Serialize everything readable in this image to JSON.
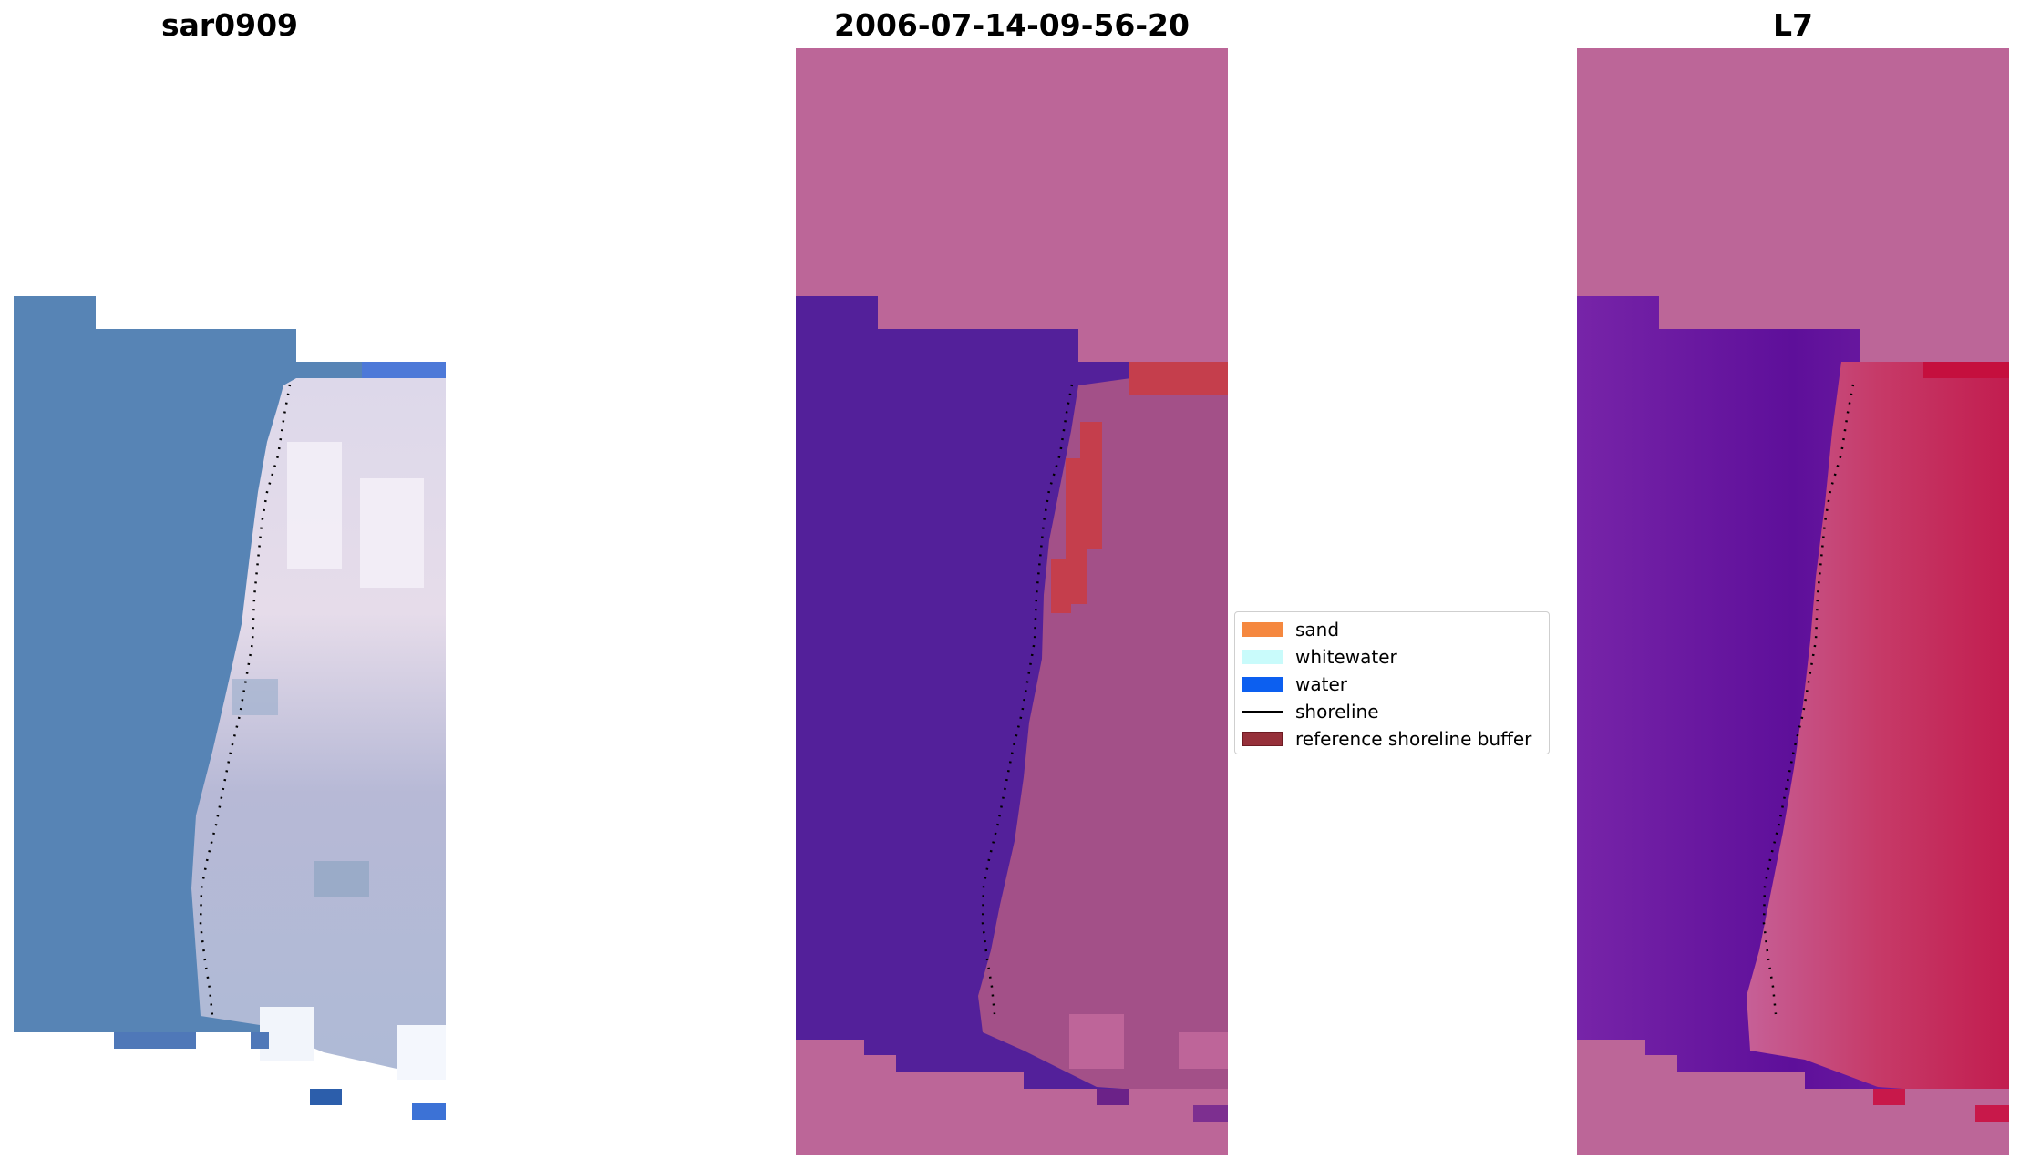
{
  "panels": {
    "left": {
      "title": "sar0909"
    },
    "middle": {
      "title": "2006-07-14-09-56-20"
    },
    "right": {
      "title": "L7"
    }
  },
  "legend": {
    "items": [
      {
        "label": "sand",
        "color": "#f5883f",
        "kind": "patch"
      },
      {
        "label": "whitewater",
        "color": "#c9fbfb",
        "kind": "patch"
      },
      {
        "label": "water",
        "color": "#0c5ff0",
        "kind": "patch"
      },
      {
        "label": "shoreline",
        "color": "#000000",
        "kind": "line"
      },
      {
        "label": "reference shoreline buffer",
        "color": "#96303a",
        "kind": "patch"
      }
    ]
  },
  "colors": {
    "rgb_water": "#4f7fb1",
    "rgb_beach": "#b8bdd8",
    "nodata_pink": "#bc6698",
    "class_water": "#53209a",
    "class_land": "#a35088",
    "buffer_red": "#c53e4c",
    "mndwi_water": "#6a1a9e",
    "mndwi_land": "#c7325c"
  }
}
